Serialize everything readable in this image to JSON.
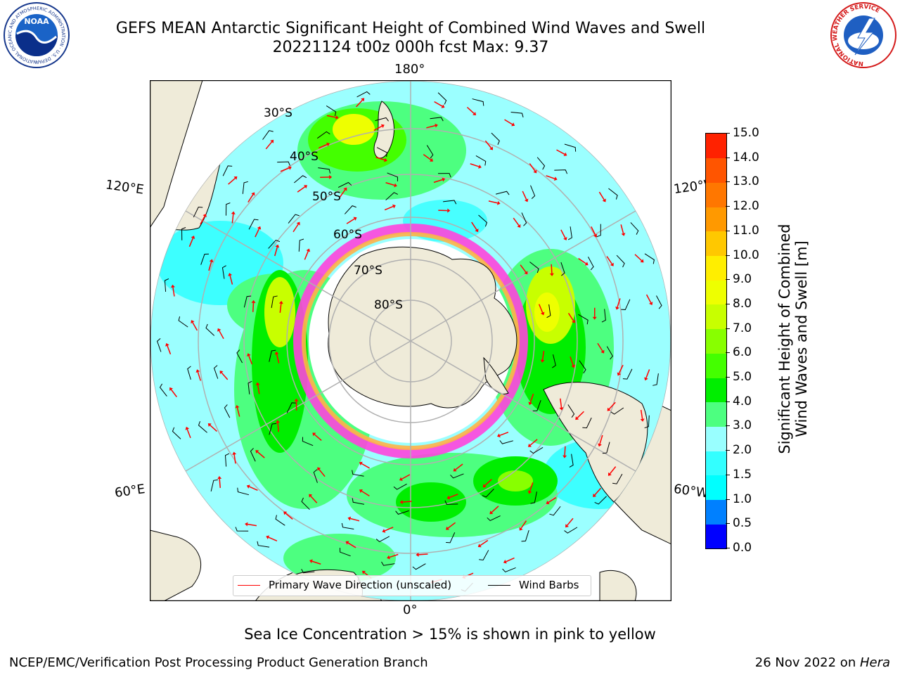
{
  "header": {
    "title_line1": "GEFS MEAN Antarctic Significant Height of Combined Wind Waves and Swell",
    "title_line2": "20221124 t00z 000h fcst   Max: 9.37",
    "noaa_logo_text": "NOAA",
    "noaa_ring_text": "NATIONAL OCEANIC AND ATMOSPHERIC ADMINISTRATION · U.S. DEPARTMENT OF COMMERCE",
    "nws_ring_text": "NATIONAL WEATHER SERVICE"
  },
  "map": {
    "projection": "south-polar-stereographic",
    "lat_labels": [
      "30°S",
      "40°S",
      "50°S",
      "60°S",
      "70°S",
      "80°S"
    ],
    "lon_labels": {
      "top": "180°",
      "bottom": "0°",
      "upper_left": "120°E",
      "lower_left": "60°E",
      "upper_right": "120°W",
      "lower_right": "60°W"
    },
    "colors": {
      "land": "#efebd9",
      "ocean_low": "#9bffff",
      "ocean_mid": "#4dff7c",
      "ocean_high": "#00e600",
      "ice_pink": "#ff44dd",
      "ice_yellow": "#ffb347",
      "wave_arrow": "#ff0000",
      "wind_barb": "#000000",
      "grid": "#b0b0b0"
    }
  },
  "legend": {
    "items": [
      {
        "label": "Primary Wave Direction (unscaled)",
        "color": "#ff0000"
      },
      {
        "label": "Wind Barbs",
        "color": "#000000"
      }
    ]
  },
  "colorbar": {
    "label_line1": "Significant Height of Combined",
    "label_line2": "Wind Waves and Swell [m]",
    "ticks": [
      "0.0",
      "0.5",
      "1.0",
      "1.5",
      "2.0",
      "3.0",
      "4.0",
      "5.0",
      "6.0",
      "7.0",
      "8.0",
      "9.0",
      "10.0",
      "11.0",
      "12.0",
      "13.0",
      "14.0",
      "15.0"
    ],
    "colors": [
      "#0000ff",
      "#0080ff",
      "#00ffff",
      "#33ffff",
      "#99ffff",
      "#4dff80",
      "#00ee00",
      "#44ff00",
      "#88ff00",
      "#c8ff00",
      "#eeff00",
      "#ffee00",
      "#ffc800",
      "#ff9900",
      "#ff7700",
      "#ff5500",
      "#ff2200"
    ]
  },
  "footer": {
    "note": "Sea Ice Concentration > 15% is shown in pink to yellow",
    "left": "NCEP/EMC/Verification Post Processing Product Generation Branch",
    "right_date": "26 Nov 2022 on ",
    "right_host": "Hera"
  }
}
